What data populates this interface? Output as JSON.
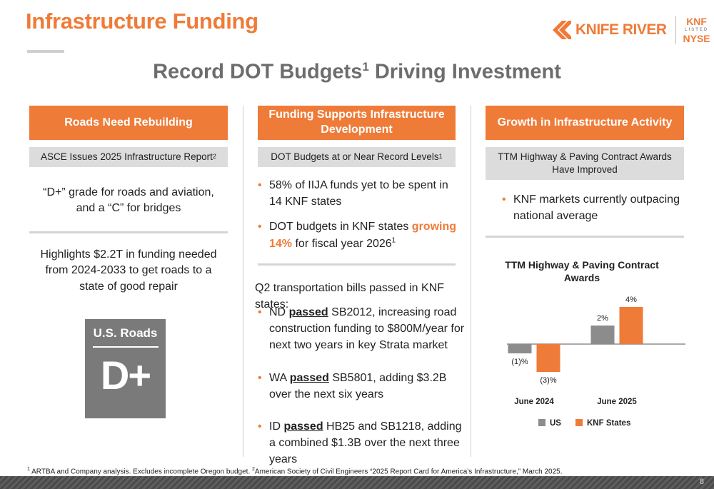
{
  "header": {
    "title": "Infrastructure Funding",
    "logo_name": "KNIFE RIVER",
    "listing_top": "KNF",
    "listing_mid": "LISTED",
    "listing_bottom": "NYSE"
  },
  "subtitle": {
    "text": "Record DOT Budgets",
    "sup": "1",
    "rest": " Driving Investment"
  },
  "col1": {
    "heading": "Roads Need Rebuilding",
    "sub": "ASCE Issues 2025 Infrastructure Report",
    "sub_sup": "2",
    "text1": "“D+” grade for roads and aviation, and a “C” for bridges",
    "text2": "Highlights $2.2T in funding needed from 2024-2033 to get roads to a state of good repair",
    "badge_title": "U.S. Roads",
    "badge_grade": "D+"
  },
  "col2": {
    "heading": "Funding Supports Infrastructure Development",
    "sub": "DOT Budgets at or Near Record Levels",
    "sub_sup": "1",
    "b1": "58% of IIJA funds yet to be spent in 14 KNF states",
    "b2_pre": "DOT budgets in KNF states ",
    "b2_hl": "growing 14%",
    "b2_post": " for fiscal year 2026",
    "b2_sup": "1",
    "intro": "Q2 transportation bills passed in KNF states:",
    "b3_pre": "ND ",
    "b3_u": "passed",
    "b3_post": " SB2012, increasing road construction funding to $800M/year for next two years in key Strata market",
    "b4_pre": "WA ",
    "b4_u": "passed",
    "b4_post": " SB5801, adding $3.2B over the next six years",
    "b5_pre": "ID ",
    "b5_u": "passed",
    "b5_post": " HB25 and SB1218, adding a combined $1.3B over the next three years"
  },
  "col3": {
    "heading": "Growth in Infrastructure Activity",
    "sub": "TTM Highway & Paving Contract Awards Have Improved",
    "b1": "KNF markets currently outpacing national average"
  },
  "chart_data": {
    "type": "bar",
    "title": "TTM Highway & Paving Contract Awards",
    "categories": [
      "June 2024",
      "June 2025"
    ],
    "series": [
      {
        "name": "US",
        "values": [
          -1,
          2
        ],
        "labels": [
          "(1)%",
          "2%"
        ],
        "color": "#8c8c8c"
      },
      {
        "name": "KNF States",
        "values": [
          -3,
          4
        ],
        "labels": [
          "(3)%",
          "4%"
        ],
        "color": "#EF7B38"
      }
    ],
    "ylim": [
      -3,
      4
    ],
    "legend": "bottom",
    "grid": false
  },
  "footnote": {
    "s1": "1",
    "t1": " ARTBA and Company analysis. Excludes incomplete Oregon budget. ",
    "s2": "2",
    "t2": "American Society of Civil Engineers “2025 Report Card for America’s Infrastructure,” March 2025."
  },
  "page_number": "8",
  "colors": {
    "accent": "#EF7B38",
    "bar_gray": "#8c8c8c",
    "header_gray": "#dcdcdc"
  }
}
